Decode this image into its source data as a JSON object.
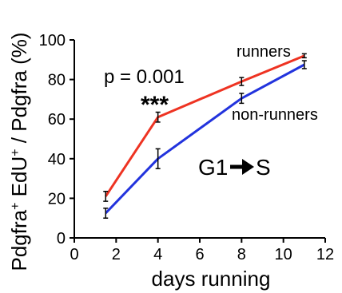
{
  "chart_data": {
    "type": "line",
    "xlabel": "days running",
    "ylabel": "Pdgfra",
    "ylabel_sup1": "+",
    "ylabel_mid": " EdU",
    "ylabel_sup2": "+",
    "ylabel_end": " / Pdgfra (%)",
    "xlim": [
      0,
      12
    ],
    "ylim": [
      0,
      100
    ],
    "xticks": [
      0,
      2,
      4,
      6,
      8,
      10,
      12
    ],
    "yticks": [
      0,
      20,
      40,
      60,
      80,
      100
    ],
    "grid": false,
    "series": [
      {
        "name": "runners",
        "color": "#ee3322",
        "x": [
          1.5,
          4,
          8,
          11
        ],
        "y": [
          21,
          61,
          79,
          92
        ],
        "err": [
          2.5,
          2.5,
          2,
          1
        ]
      },
      {
        "name": "non-runners",
        "color": "#2233dd",
        "x": [
          1.5,
          4,
          8,
          11
        ],
        "y": [
          12.5,
          40,
          70.5,
          87.5
        ],
        "err": [
          2.5,
          5,
          2.5,
          2
        ]
      }
    ],
    "annotations": {
      "pvalue": "p = 0.001",
      "stars": "***",
      "transition_from": "G1",
      "transition_to": "S"
    }
  }
}
